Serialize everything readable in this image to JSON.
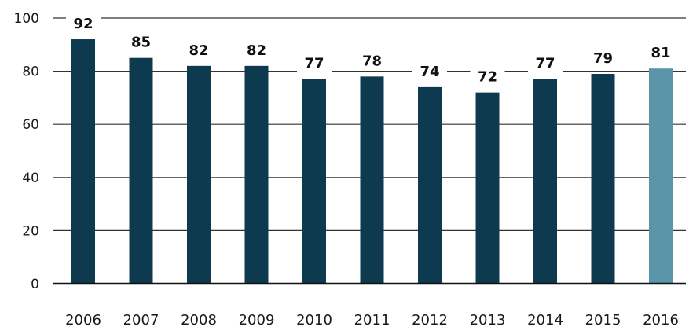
{
  "chart_data": {
    "type": "bar",
    "title": "",
    "xlabel": "",
    "ylabel": "",
    "categories": [
      "2006",
      "2007",
      "2008",
      "2009",
      "2010",
      "2011",
      "2012",
      "2013",
      "2014",
      "2015",
      "2016"
    ],
    "values": [
      92,
      85,
      82,
      82,
      77,
      78,
      74,
      72,
      77,
      79,
      81
    ],
    "data_labels": [
      "92",
      "85",
      "82",
      "82",
      "77",
      "78",
      "74",
      "72",
      "77",
      "79",
      "81"
    ],
    "ylim": [
      0,
      100
    ],
    "yticks": [
      0,
      20,
      40,
      60,
      80,
      100
    ],
    "ytick_labels": [
      "0",
      "20",
      "40",
      "60",
      "80",
      "100"
    ],
    "grid": true,
    "legend": "none",
    "colors": {
      "bar": "#0d3a4e",
      "highlight_bar": "#5a95aa",
      "highlight_category": "2016",
      "gridline": "#333333",
      "axis": "#111111"
    }
  }
}
